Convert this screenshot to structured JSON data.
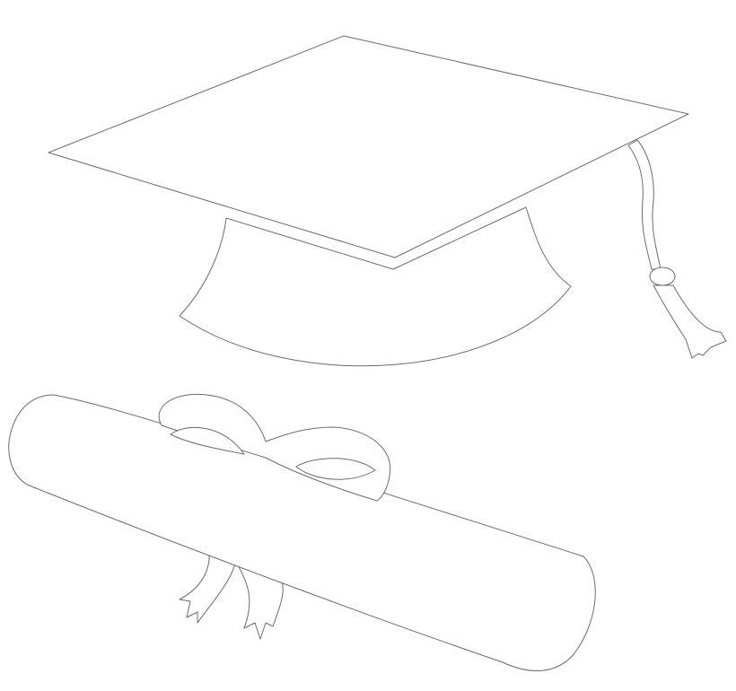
{
  "illustration": {
    "background_color": "#ffffff",
    "stroke_color": "#6b6b6b",
    "objects": [
      {
        "name": "graduation-cap",
        "icon": "mortarboard-icon"
      },
      {
        "name": "diploma-scroll",
        "icon": "diploma-icon"
      }
    ]
  }
}
